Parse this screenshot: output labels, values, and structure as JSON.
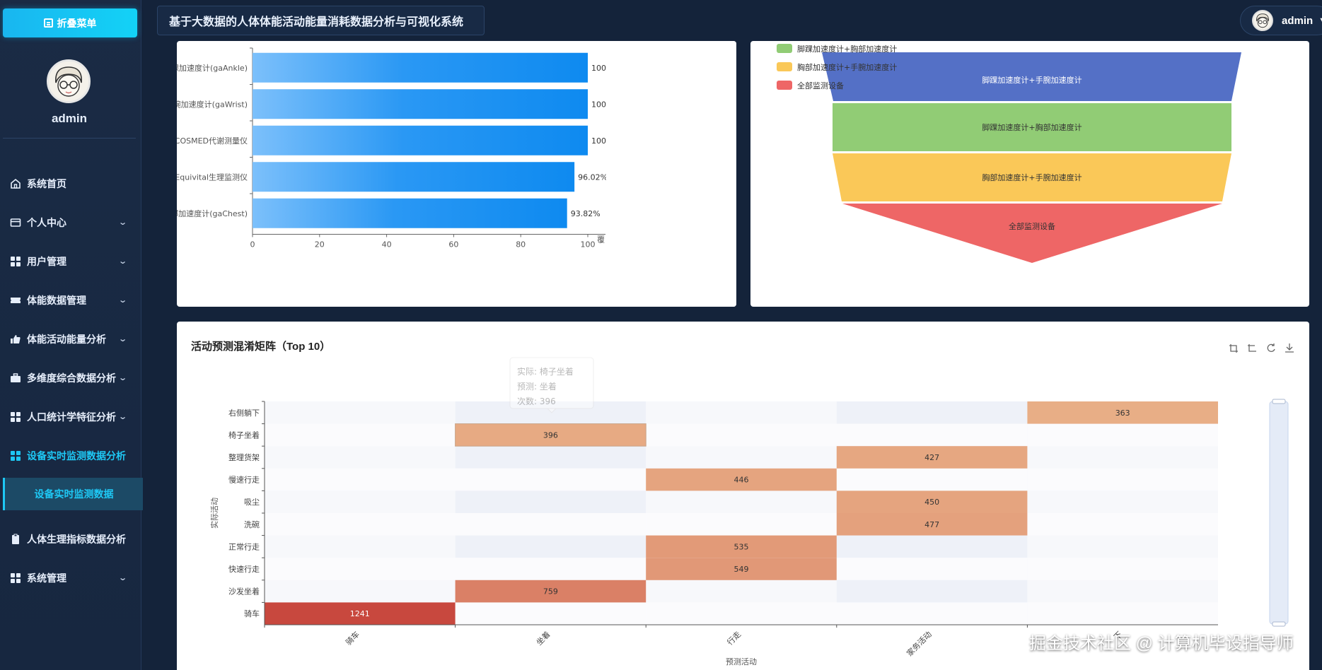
{
  "app": {
    "collapse_label": "折叠菜单",
    "title": "基于大数据的人体体能活动能量消耗数据分析与可视化系统",
    "username": "admin"
  },
  "sidebar": {
    "username": "admin",
    "items": [
      {
        "label": "系统首页",
        "icon": "home-icon",
        "chevron": false
      },
      {
        "label": "个人中心",
        "icon": "card-icon",
        "chevron": true
      },
      {
        "label": "用户管理",
        "icon": "grid-icon",
        "chevron": true
      },
      {
        "label": "体能数据管理",
        "icon": "ticket-icon",
        "chevron": true
      },
      {
        "label": "体能活动能量分析",
        "icon": "thumb-icon",
        "chevron": true
      },
      {
        "label": "多维度综合数据分析",
        "icon": "briefcase-icon",
        "chevron": true
      },
      {
        "label": "人口统计学特征分析",
        "icon": "grid-icon",
        "chevron": true
      },
      {
        "label": "设备实时监测数据分析",
        "icon": "grid-icon",
        "chevron": false
      },
      {
        "label": "人体生理指标数据分析",
        "icon": "clipboard-icon",
        "chevron": false
      },
      {
        "label": "系统管理",
        "icon": "grid-icon",
        "chevron": true
      }
    ],
    "sub_item": "设备实时监测数据"
  },
  "chart_data": [
    {
      "type": "bar",
      "orientation": "horizontal",
      "categories": [
        "脚踝加速度计(gaAnkle)",
        "手腕加速度计(gaWrist)",
        "COSMED代谢测量仪",
        "Equivital生理监测仪",
        "胸部加速度计(gaChest)"
      ],
      "values": [
        100.0,
        100.0,
        100.0,
        96.02,
        93.82
      ],
      "value_labels": [
        "100.",
        "100.",
        "100.",
        "96.02%",
        "93.82%"
      ],
      "xlim": [
        0,
        100
      ],
      "xticks": [
        "0",
        "20",
        "40",
        "60",
        "80",
        "100"
      ],
      "xlabel": "覆",
      "color": "#0e8af0"
    },
    {
      "type": "funnel",
      "legend": [
        {
          "label": "脚踝加速度计+胸部加速度计",
          "color": "#91cc75"
        },
        {
          "label": "胸部加速度计+手腕加速度计",
          "color": "#fac858"
        },
        {
          "label": "全部监测设备",
          "color": "#ee6666"
        }
      ],
      "stages": [
        {
          "label": "脚踝加速度计+手腕加速度计",
          "color": "#5470c6"
        },
        {
          "label": "脚踝加速度计+胸部加速度计",
          "color": "#91cc75"
        },
        {
          "label": "胸部加速度计+手腕加速度计",
          "color": "#fac858"
        },
        {
          "label": "全部监测设备",
          "color": "#ee6666"
        }
      ]
    },
    {
      "type": "heatmap",
      "title": "活动预测混淆矩阵（Top 10）",
      "ylabel": "实际活动",
      "xlabel": "预测活动",
      "x_categories": [
        "骑车",
        "坐着",
        "行走",
        "家务活动",
        "下"
      ],
      "y_categories": [
        "右侧躺下",
        "椅子坐着",
        "整理货架",
        "慢速行走",
        "吸尘",
        "洗碗",
        "正常行走",
        "快速行走",
        "沙发坐着",
        "骑车"
      ],
      "cells": [
        {
          "row": 0,
          "col": 4,
          "value": 363
        },
        {
          "row": 1,
          "col": 1,
          "value": 396
        },
        {
          "row": 2,
          "col": 3,
          "value": 427
        },
        {
          "row": 3,
          "col": 2,
          "value": 446
        },
        {
          "row": 4,
          "col": 3,
          "value": 450
        },
        {
          "row": 5,
          "col": 3,
          "value": 477
        },
        {
          "row": 6,
          "col": 2,
          "value": 535
        },
        {
          "row": 7,
          "col": 2,
          "value": 549
        },
        {
          "row": 8,
          "col": 1,
          "value": 759
        },
        {
          "row": 9,
          "col": 0,
          "value": 1241
        }
      ],
      "tooltip": {
        "actual": "实际: 椅子坐着",
        "predicted": "预测: 坐着",
        "count": "次数: 396"
      },
      "toolbox": [
        "zoom-icon",
        "zoom-reset-icon",
        "restore-icon",
        "download-icon"
      ]
    }
  ],
  "watermark": "掘金技术社区 @ 计算机毕设指导师"
}
